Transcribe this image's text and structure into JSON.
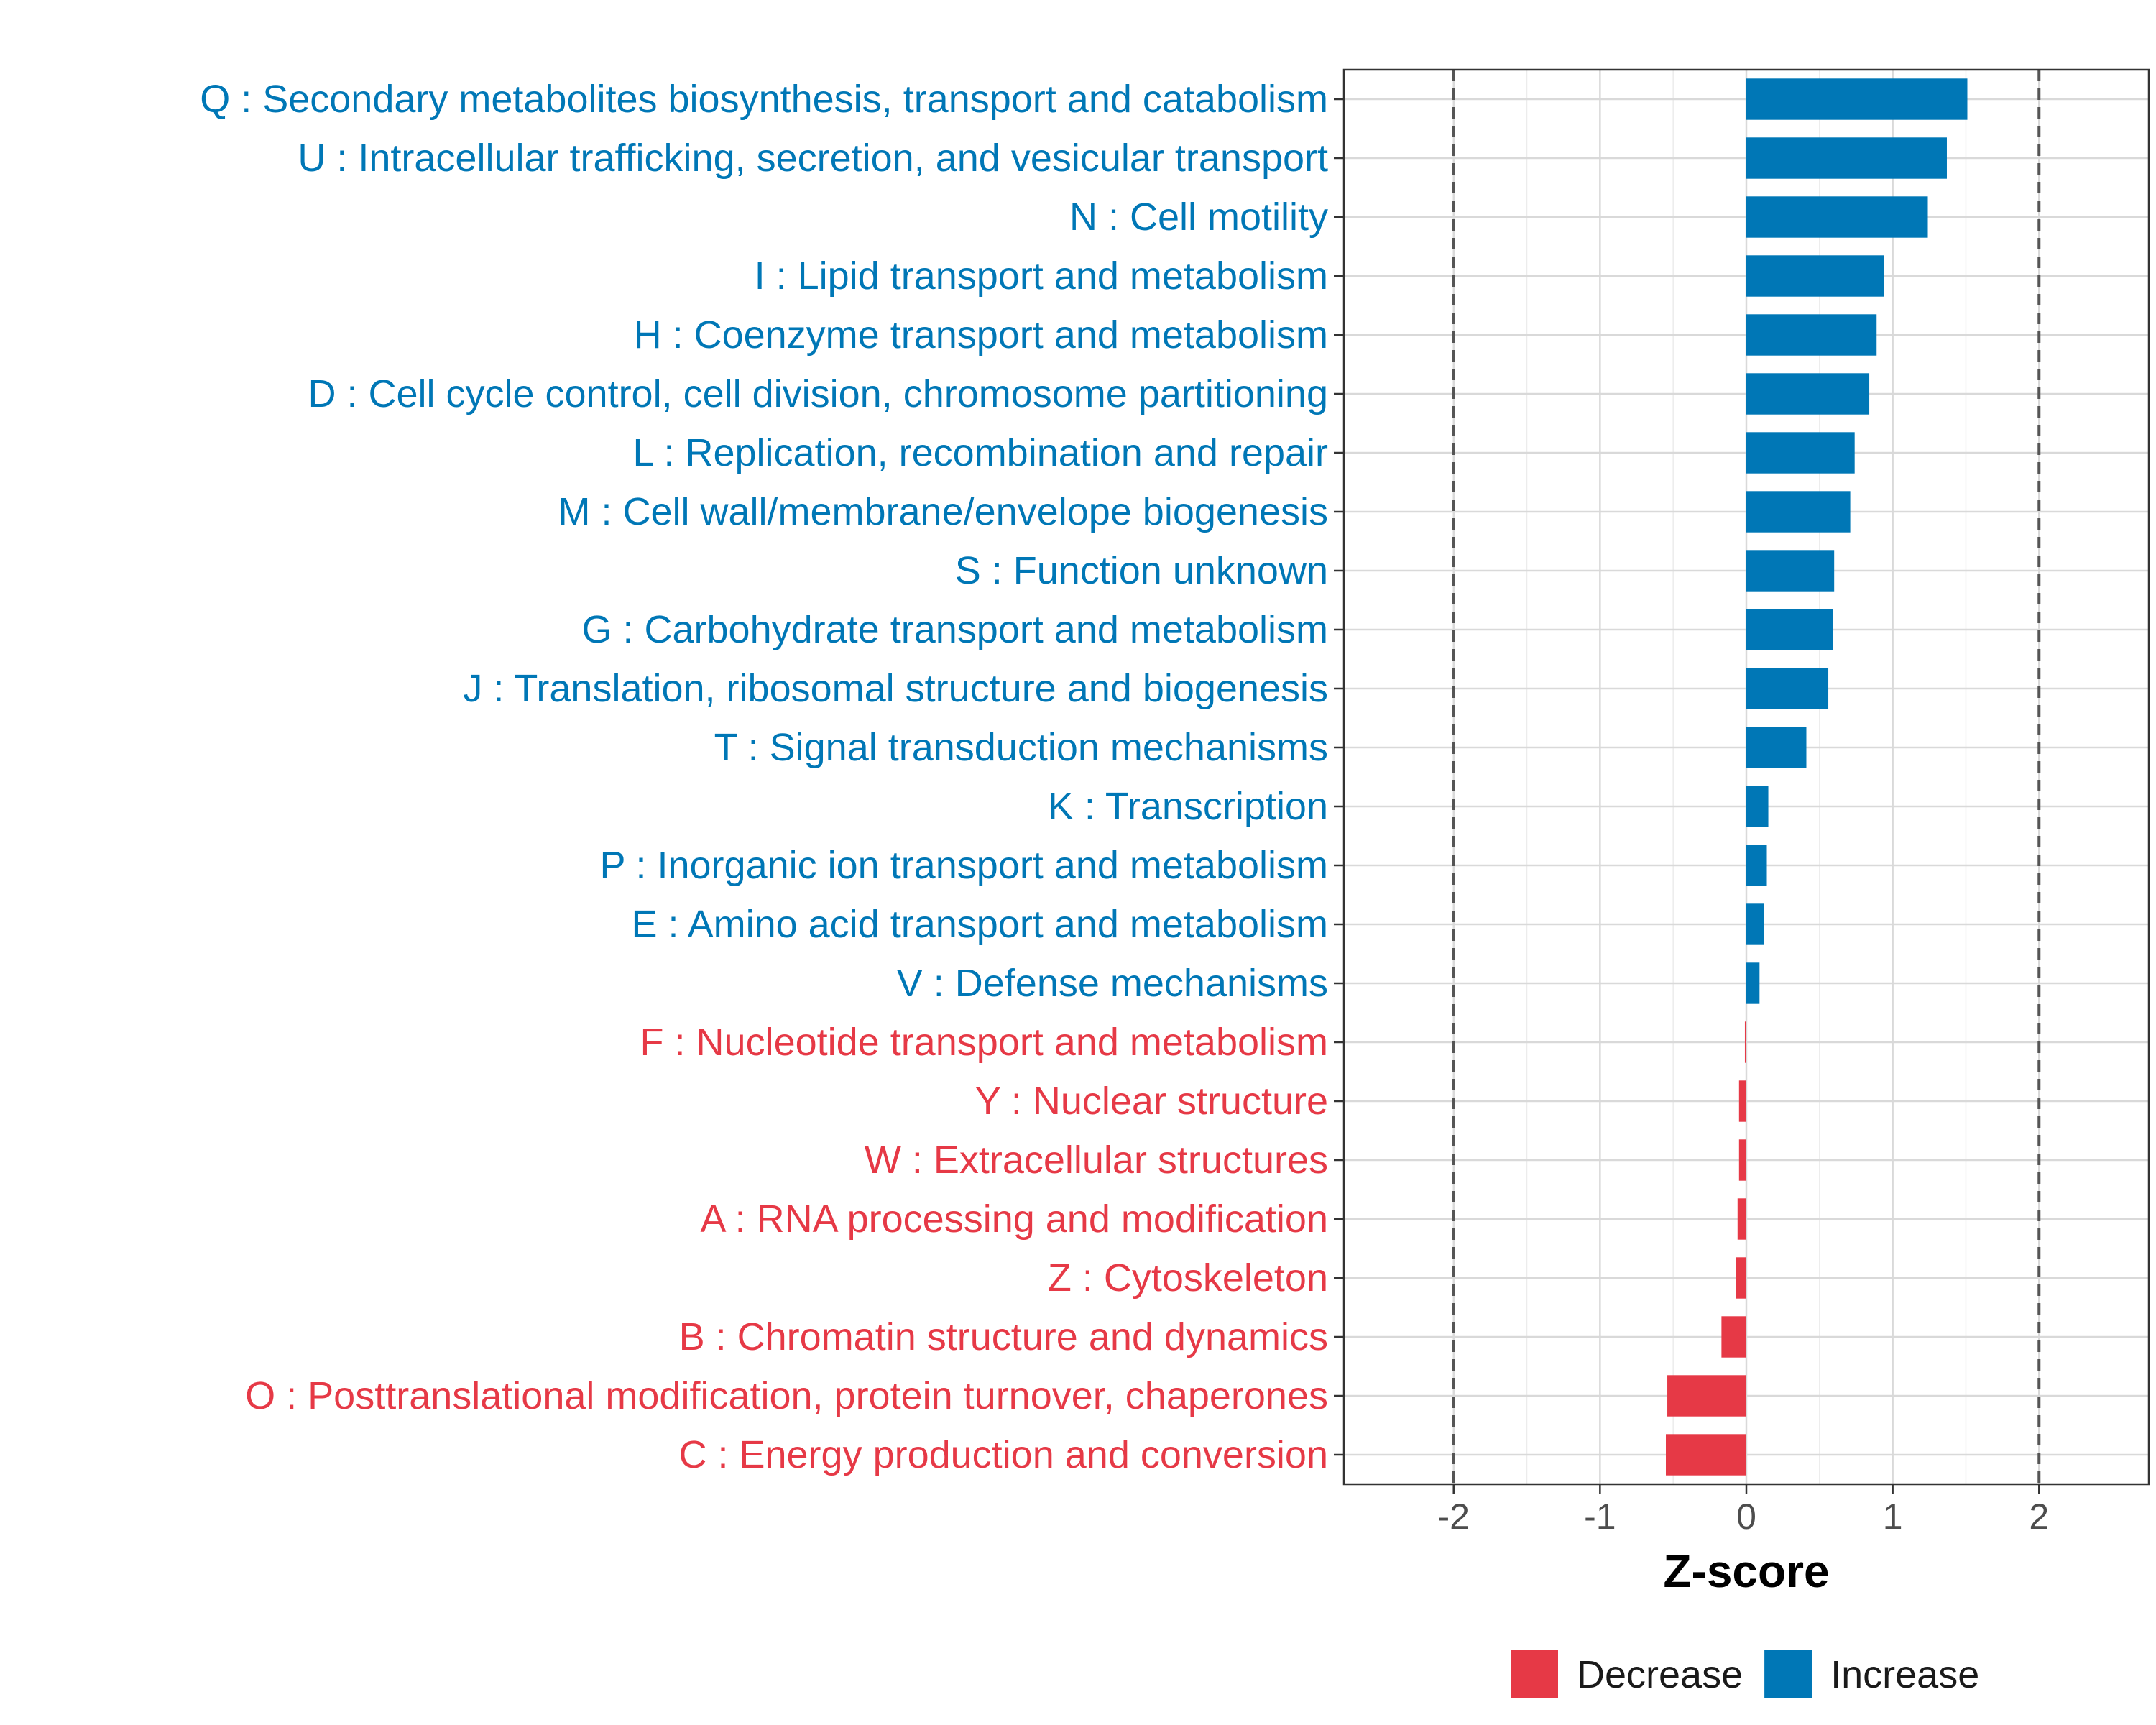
{
  "chart_data": {
    "type": "bar",
    "orientation": "horizontal",
    "title": "",
    "xlabel": "Z-score",
    "ylabel": "",
    "xlim": [
      -2.75,
      2.75
    ],
    "xticks": [
      -2,
      -1,
      0,
      1,
      2
    ],
    "xtick_labels": [
      "-2",
      "-1",
      "0",
      "1",
      "2"
    ],
    "reference_lines": [
      -2,
      2
    ],
    "grid": true,
    "legend_position": "bottom",
    "colors": {
      "Decrease": "#e63946",
      "Increase": "#0077b6"
    },
    "legend": [
      {
        "name": "Decrease",
        "color": "#e63946"
      },
      {
        "name": "Increase",
        "color": "#0077b6"
      }
    ],
    "categories": [
      "Q : Secondary metabolites biosynthesis, transport and catabolism",
      "U : Intracellular trafficking, secretion, and vesicular transport",
      "N : Cell motility",
      "I : Lipid transport and metabolism",
      "H : Coenzyme transport and metabolism",
      "D : Cell cycle control, cell division, chromosome partitioning",
      "L : Replication, recombination and repair",
      "M : Cell wall/membrane/envelope biogenesis",
      "S : Function unknown",
      "G : Carbohydrate transport and metabolism",
      "J : Translation, ribosomal structure and biogenesis",
      "T : Signal transduction mechanisms",
      "K : Transcription",
      "P : Inorganic ion transport and metabolism",
      "E : Amino acid transport and metabolism",
      "V : Defense mechanisms",
      "F : Nucleotide transport and metabolism",
      "Y : Nuclear structure",
      "W : Extracellular structures",
      "A : RNA processing and modification",
      "Z : Cytoskeleton",
      "B : Chromatin structure and dynamics",
      "O : Posttranslational modification, protein turnover, chaperones",
      "C : Energy production and conversion"
    ],
    "values": [
      1.51,
      1.37,
      1.24,
      0.94,
      0.89,
      0.84,
      0.74,
      0.71,
      0.6,
      0.59,
      0.56,
      0.41,
      0.15,
      0.14,
      0.12,
      0.09,
      -0.01,
      -0.05,
      -0.05,
      -0.06,
      -0.07,
      -0.17,
      -0.54,
      -0.55
    ],
    "groups": [
      "Increase",
      "Increase",
      "Increase",
      "Increase",
      "Increase",
      "Increase",
      "Increase",
      "Increase",
      "Increase",
      "Increase",
      "Increase",
      "Increase",
      "Increase",
      "Increase",
      "Increase",
      "Increase",
      "Decrease",
      "Decrease",
      "Decrease",
      "Decrease",
      "Decrease",
      "Decrease",
      "Decrease",
      "Decrease"
    ]
  }
}
